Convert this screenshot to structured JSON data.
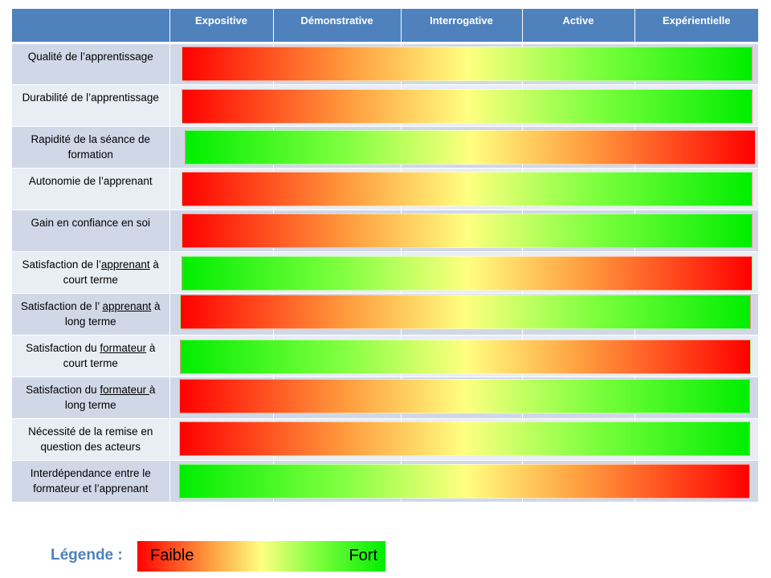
{
  "header": {
    "columns": [
      "",
      "Expositive",
      "Démonstrative",
      "Interrogative",
      "Active",
      "Expérientielle"
    ]
  },
  "rows": [
    {
      "label": "Qualité de l’apprentissage",
      "direction": "faible-a-fort"
    },
    {
      "label": "Durabilité de l’apprentissage",
      "direction": "faible-a-fort"
    },
    {
      "label": "Rapidité de la séance de formation",
      "direction": "fort-a-faible"
    },
    {
      "label": "Autonomie  de l’apprenant",
      "direction": "faible-a-fort"
    },
    {
      "label": "Gain en confiance en soi",
      "direction": "faible-a-fort"
    },
    {
      "label_parts": [
        "Satisfaction de l’",
        "apprenant",
        " à court terme"
      ],
      "direction": "fort-a-faible"
    },
    {
      "label_parts": [
        "Satisfaction de l’ ",
        "apprenant",
        " à long terme"
      ],
      "direction": "faible-a-fort"
    },
    {
      "label_parts": [
        "Satisfaction du ",
        "formateur",
        "  à court terme"
      ],
      "direction": "fort-a-faible"
    },
    {
      "label_parts": [
        "Satisfaction du ",
        "formateur ",
        " à long terme"
      ],
      "direction": "faible-a-fort"
    },
    {
      "label": "Nécessité de la remise en question des acteurs",
      "direction": "faible-a-fort"
    },
    {
      "label": "Interdépendance entre le formateur  et l’apprenant",
      "direction": "fort-a-faible"
    }
  ],
  "legend": {
    "title": "Légende :",
    "low": "Faible",
    "high": "Fort",
    "low_color": "#ff0000",
    "mid_color": "#ffff80",
    "high_color": "#00ee00"
  }
}
